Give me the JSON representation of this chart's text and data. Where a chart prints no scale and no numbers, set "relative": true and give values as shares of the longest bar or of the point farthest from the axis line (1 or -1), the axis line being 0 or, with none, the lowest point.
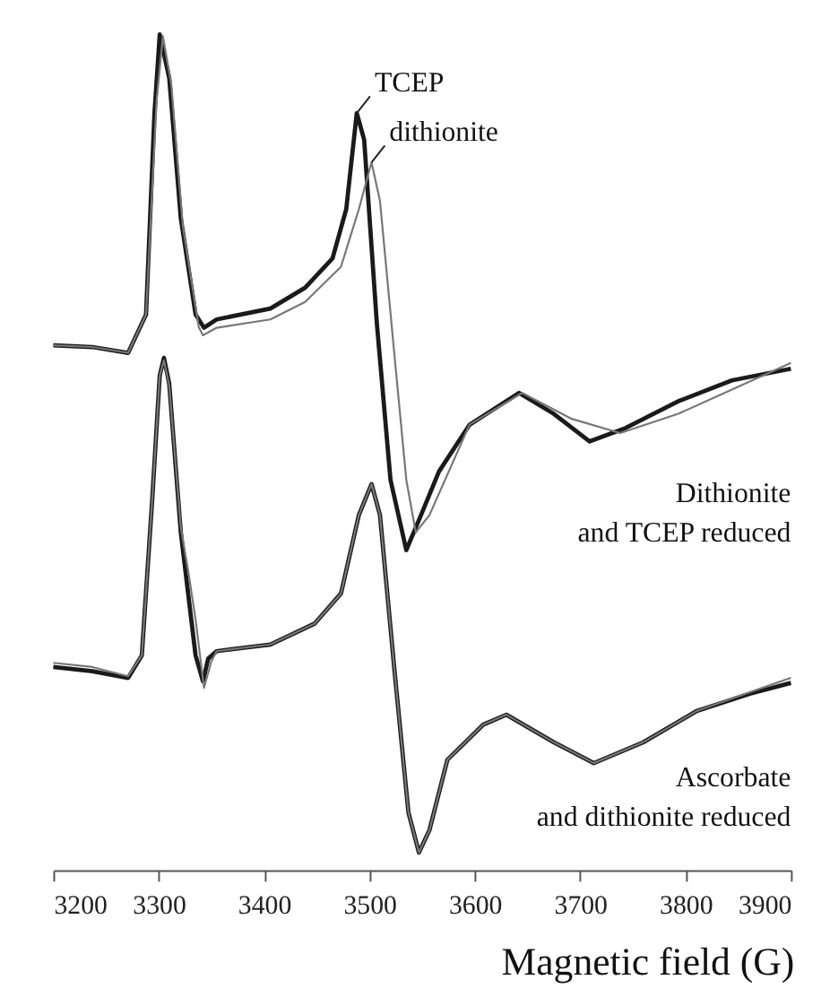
{
  "chart_data": {
    "type": "line",
    "relative": true,
    "xlabel": "Magnetic field (G)",
    "xlim": [
      3200,
      3900
    ],
    "xticks": [
      3200,
      3300,
      3400,
      3500,
      3600,
      3700,
      3800,
      3900
    ],
    "grid": false,
    "tick_labels": "x",
    "marker": "none",
    "line_style": "solid",
    "series": [
      {
        "color": "#1a1a1a",
        "x": [
          3200,
          3237,
          3271,
          3288,
          3296,
          3301,
          3310,
          3321,
          3335,
          3343,
          3355,
          3406,
          3439,
          3465,
          3478,
          3488,
          3495,
          3507,
          3520,
          3535,
          3549,
          3566,
          3595,
          3642,
          3675,
          3709,
          3743,
          3793,
          3844,
          3900
        ],
        "values": [
          0.628,
          0.626,
          0.619,
          0.665,
          0.906,
          1.0,
          0.948,
          0.78,
          0.665,
          0.649,
          0.659,
          0.672,
          0.697,
          0.732,
          0.791,
          0.906,
          0.874,
          0.655,
          0.467,
          0.383,
          0.425,
          0.477,
          0.533,
          0.571,
          0.546,
          0.513,
          0.529,
          0.561,
          0.586,
          0.6
        ]
      },
      {
        "color": "#777777",
        "x": [
          3200,
          3237,
          3271,
          3288,
          3298,
          3304,
          3312,
          3323,
          3338,
          3342,
          3355,
          3406,
          3439,
          3473,
          3490,
          3502,
          3510,
          3524,
          3535,
          3544,
          3557,
          3595,
          3645,
          3692,
          3738,
          3793,
          3844,
          3900
        ],
        "values": [
          0.628,
          0.626,
          0.619,
          0.665,
          0.92,
          0.998,
          0.94,
          0.77,
          0.65,
          0.64,
          0.649,
          0.659,
          0.68,
          0.722,
          0.791,
          0.847,
          0.801,
          0.613,
          0.467,
          0.404,
          0.425,
          0.533,
          0.571,
          0.54,
          0.523,
          0.546,
          0.575,
          0.607
        ]
      },
      {
        "color": "#1a1a1a",
        "x": [
          3200,
          3237,
          3271,
          3284,
          3294,
          3301,
          3305,
          3310,
          3321,
          3335,
          3342,
          3347,
          3355,
          3406,
          3448,
          3473,
          3490,
          3502,
          3510,
          3524,
          3537,
          3547,
          3557,
          3574,
          3608,
          3630,
          3675,
          3713,
          3760,
          3810,
          3861,
          3900
        ],
        "values": [
          0.243,
          0.238,
          0.23,
          0.257,
          0.446,
          0.592,
          0.613,
          0.582,
          0.404,
          0.257,
          0.226,
          0.253,
          0.262,
          0.27,
          0.295,
          0.331,
          0.425,
          0.462,
          0.425,
          0.236,
          0.069,
          0.021,
          0.048,
          0.132,
          0.174,
          0.186,
          0.153,
          0.128,
          0.153,
          0.19,
          0.211,
          0.224
        ]
      },
      {
        "color": "#777777",
        "x": [
          3200,
          3237,
          3271,
          3284,
          3294,
          3301,
          3305,
          3310,
          3321,
          3328,
          3335,
          3343,
          3350,
          3355,
          3406,
          3448,
          3473,
          3490,
          3502,
          3510,
          3524,
          3537,
          3547,
          3557,
          3574,
          3608,
          3630,
          3675,
          3713,
          3760,
          3810,
          3861,
          3900
        ],
        "values": [
          0.248,
          0.243,
          0.232,
          0.257,
          0.446,
          0.592,
          0.61,
          0.58,
          0.41,
          0.358,
          0.3,
          0.218,
          0.25,
          0.262,
          0.27,
          0.295,
          0.331,
          0.425,
          0.462,
          0.425,
          0.236,
          0.069,
          0.021,
          0.048,
          0.132,
          0.174,
          0.186,
          0.153,
          0.128,
          0.153,
          0.19,
          0.213,
          0.23
        ]
      }
    ],
    "annotations": [
      {
        "text": "TCEP",
        "x": 3488,
        "y": 0.906
      },
      {
        "text": "dithionite",
        "x": 3502,
        "y": 0.847
      },
      "Dithionite\nand TCEP reduced",
      "Ascorbate\nand dithionite reduced"
    ]
  }
}
